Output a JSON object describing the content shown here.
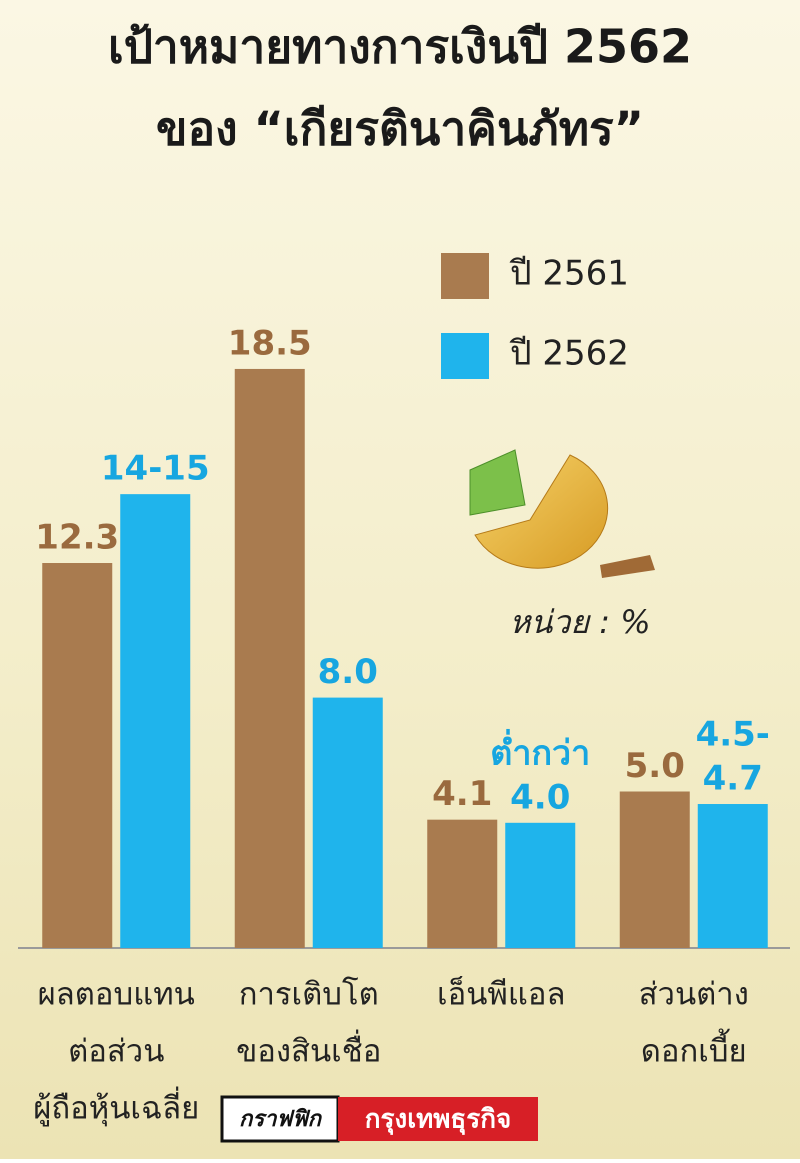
{
  "chart_data": {
    "type": "bar",
    "title": [
      "เป้าหมายทางการเงินปี 2562",
      "ของ “เกียรตินาคินภัทร”"
    ],
    "unit_note": "หน่วย : %",
    "categories": [
      [
        "ผลตอบแทน",
        "ต่อส่วน",
        "ผู้ถือหุ้นเฉลี่ย"
      ],
      [
        "การเติบโต",
        "ของสินเชื่อ"
      ],
      [
        "เอ็นพีแอล"
      ],
      [
        "ส่วนต่าง",
        "ดอกเบี้ย"
      ]
    ],
    "series": [
      {
        "name": "ปี 2561",
        "color": "#a97b4f",
        "label_color": "#9a6a3e",
        "values": [
          12.3,
          18.5,
          4.1,
          5.0
        ],
        "value_labels": [
          "12.3",
          "18.5",
          "4.1",
          "5.0"
        ]
      },
      {
        "name": "ปี 2562",
        "color": "#1fb4ec",
        "label_color": "#17a6e0",
        "values": [
          14.5,
          8.0,
          4.0,
          4.6
        ],
        "value_labels": [
          "14-15",
          "8.0",
          [
            "ต่ำกว่า",
            "4.0"
          ],
          [
            "4.5-",
            "4.7"
          ]
        ]
      }
    ],
    "credit": [
      "กราฟฟิก",
      "กรุงเทพธุรกิจ"
    ]
  }
}
